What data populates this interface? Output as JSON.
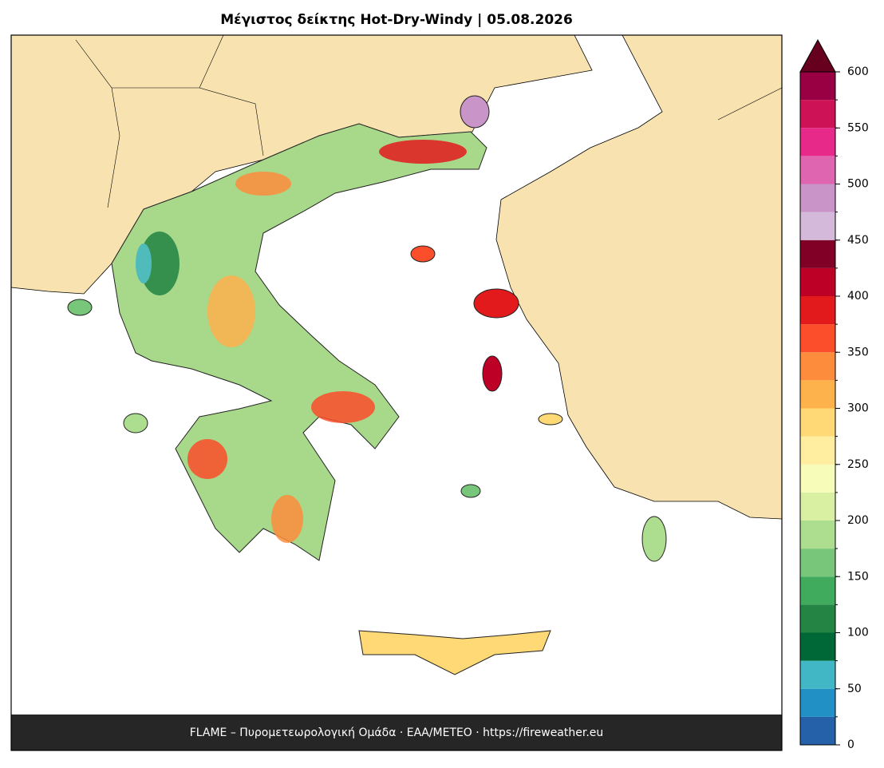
{
  "title": "Μέγιστος δείκτης Hot-Dry-Windy  |  05.08.2026",
  "footer": "FLAME – Πυρομετεωρολογική Ομάδα · ΕΑΑ/METEO · https://fireweather.eu",
  "colorbar": {
    "levels": [
      0,
      25,
      50,
      75,
      100,
      125,
      150,
      175,
      200,
      225,
      250,
      275,
      300,
      325,
      350,
      375,
      400,
      425,
      450,
      475,
      500,
      525,
      550,
      575,
      600
    ],
    "colors": [
      "#2461a8",
      "#2190c4",
      "#41b6c4",
      "#006837",
      "#238443",
      "#41ab5d",
      "#78c679",
      "#addd8e",
      "#d9f0a3",
      "#f7fcb9",
      "#ffeda0",
      "#fed976",
      "#feb24c",
      "#fd8d3c",
      "#fc4e2a",
      "#e31a1c",
      "#bd0026",
      "#800026",
      "#d4b9da",
      "#c994c7",
      "#df65b0",
      "#e7298a",
      "#ce1256",
      "#980043"
    ],
    "extend_color": "#67001f",
    "ticks": [
      0,
      50,
      100,
      150,
      200,
      250,
      300,
      350,
      400,
      450,
      500,
      550,
      600
    ]
  }
}
